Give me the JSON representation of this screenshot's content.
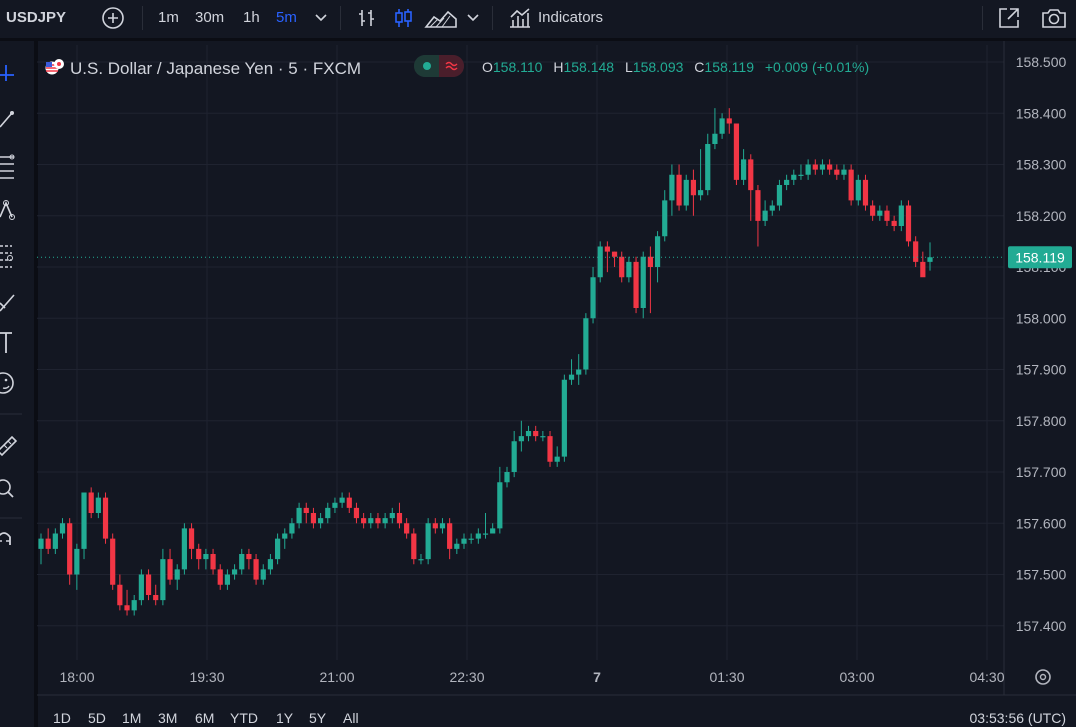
{
  "toolbar": {
    "symbol": "USDJPY",
    "intervals": [
      "1m",
      "30m",
      "1h",
      "5m"
    ],
    "active_interval": "5m",
    "indicators_label": "Indicators"
  },
  "legend": {
    "title": "U.S. Dollar / Japanese Yen · 5 · FXCM",
    "open_key": "O",
    "open": "158.110",
    "high_key": "H",
    "high": "158.148",
    "low_key": "L",
    "low": "158.093",
    "close_key": "C",
    "close": "158.119",
    "change": "+0.009 (+0.01%)"
  },
  "bottom": {
    "ranges": [
      "1D",
      "5D",
      "1M",
      "3M",
      "6M",
      "YTD",
      "1Y",
      "5Y",
      "All"
    ],
    "clock": "03:53:56 (UTC)"
  },
  "colors": {
    "up": "#22ab94",
    "down": "#f23645",
    "background": "#131722",
    "accent": "#2962ff"
  },
  "chart_data": {
    "type": "candlestick",
    "symbol": "USDJPY",
    "interval": "5m",
    "y_ticks": [
      "158.500",
      "158.400",
      "158.300",
      "158.200",
      "158.100",
      "158.000",
      "157.900",
      "157.800",
      "157.700",
      "157.600",
      "157.500",
      "157.400"
    ],
    "x_ticks": [
      "18:00",
      "19:30",
      "21:00",
      "22:30",
      "7",
      "01:30",
      "03:00",
      "04:30"
    ],
    "last_price": "158.119",
    "ylim": [
      157.35,
      158.52
    ],
    "candles": [
      [
        157.55,
        157.57,
        157.52,
        157.58
      ],
      [
        157.57,
        157.55,
        157.54,
        157.59
      ],
      [
        157.55,
        157.58,
        157.54,
        157.59
      ],
      [
        157.58,
        157.6,
        157.57,
        157.61
      ],
      [
        157.6,
        157.5,
        157.48,
        157.61
      ],
      [
        157.5,
        157.55,
        157.47,
        157.56
      ],
      [
        157.55,
        157.66,
        157.53,
        157.66
      ],
      [
        157.66,
        157.62,
        157.61,
        157.67
      ],
      [
        157.62,
        157.65,
        157.61,
        157.66
      ],
      [
        157.65,
        157.57,
        157.56,
        157.66
      ],
      [
        157.57,
        157.48,
        157.47,
        157.58
      ],
      [
        157.48,
        157.44,
        157.43,
        157.5
      ],
      [
        157.44,
        157.43,
        157.42,
        157.47
      ],
      [
        157.43,
        157.45,
        157.42,
        157.46
      ],
      [
        157.45,
        157.5,
        157.44,
        157.51
      ],
      [
        157.5,
        157.46,
        157.45,
        157.51
      ],
      [
        157.46,
        157.45,
        157.44,
        157.48
      ],
      [
        157.45,
        157.53,
        157.44,
        157.55
      ],
      [
        157.53,
        157.49,
        157.48,
        157.55
      ],
      [
        157.49,
        157.51,
        157.47,
        157.52
      ],
      [
        157.51,
        157.59,
        157.5,
        157.6
      ],
      [
        157.59,
        157.55,
        157.53,
        157.6
      ],
      [
        157.55,
        157.53,
        157.51,
        157.56
      ],
      [
        157.53,
        157.54,
        157.51,
        157.55
      ],
      [
        157.54,
        157.51,
        157.5,
        157.55
      ],
      [
        157.51,
        157.48,
        157.47,
        157.52
      ],
      [
        157.48,
        157.5,
        157.47,
        157.51
      ],
      [
        157.5,
        157.51,
        157.49,
        157.52
      ],
      [
        157.51,
        157.54,
        157.5,
        157.55
      ],
      [
        157.54,
        157.53,
        157.51,
        157.55
      ],
      [
        157.53,
        157.49,
        157.48,
        157.54
      ],
      [
        157.49,
        157.51,
        157.48,
        157.52
      ],
      [
        157.51,
        157.53,
        157.5,
        157.54
      ],
      [
        157.53,
        157.57,
        157.52,
        157.58
      ],
      [
        157.57,
        157.58,
        157.55,
        157.59
      ],
      [
        157.58,
        157.6,
        157.57,
        157.61
      ],
      [
        157.6,
        157.63,
        157.59,
        157.64
      ],
      [
        157.63,
        157.62,
        157.6,
        157.64
      ],
      [
        157.62,
        157.6,
        157.59,
        157.63
      ],
      [
        157.6,
        157.61,
        157.59,
        157.62
      ],
      [
        157.61,
        157.63,
        157.6,
        157.64
      ],
      [
        157.63,
        157.64,
        157.62,
        157.65
      ],
      [
        157.64,
        157.65,
        157.63,
        157.66
      ],
      [
        157.65,
        157.63,
        157.62,
        157.66
      ],
      [
        157.63,
        157.61,
        157.6,
        157.64
      ],
      [
        157.61,
        157.6,
        157.59,
        157.62
      ],
      [
        157.6,
        157.61,
        157.59,
        157.62
      ],
      [
        157.61,
        157.6,
        157.59,
        157.62
      ],
      [
        157.6,
        157.61,
        157.59,
        157.62
      ],
      [
        157.61,
        157.62,
        157.6,
        157.63
      ],
      [
        157.62,
        157.6,
        157.59,
        157.64
      ],
      [
        157.6,
        157.58,
        157.57,
        157.61
      ],
      [
        157.58,
        157.53,
        157.52,
        157.59
      ],
      [
        157.53,
        157.53,
        157.52,
        157.54
      ],
      [
        157.53,
        157.6,
        157.52,
        157.61
      ],
      [
        157.6,
        157.59,
        157.58,
        157.61
      ],
      [
        157.59,
        157.6,
        157.58,
        157.61
      ],
      [
        157.6,
        157.55,
        157.53,
        157.61
      ],
      [
        157.55,
        157.56,
        157.54,
        157.57
      ],
      [
        157.56,
        157.57,
        157.55,
        157.58
      ],
      [
        157.57,
        157.57,
        157.56,
        157.58
      ],
      [
        157.57,
        157.58,
        157.56,
        157.59
      ],
      [
        157.58,
        157.58,
        157.57,
        157.62
      ],
      [
        157.58,
        157.59,
        157.58,
        157.6
      ],
      [
        157.59,
        157.68,
        157.58,
        157.71
      ],
      [
        157.68,
        157.7,
        157.67,
        157.71
      ],
      [
        157.7,
        157.76,
        157.69,
        157.78
      ],
      [
        157.76,
        157.77,
        157.74,
        157.8
      ],
      [
        157.77,
        157.78,
        157.76,
        157.79
      ],
      [
        157.78,
        157.77,
        157.76,
        157.79
      ],
      [
        157.77,
        157.77,
        157.76,
        157.78
      ],
      [
        157.77,
        157.72,
        157.71,
        157.78
      ],
      [
        157.72,
        157.73,
        157.71,
        157.75
      ],
      [
        157.73,
        157.88,
        157.72,
        157.89
      ],
      [
        157.88,
        157.89,
        157.87,
        157.92
      ],
      [
        157.89,
        157.9,
        157.87,
        157.93
      ],
      [
        157.9,
        158.0,
        157.89,
        158.01
      ],
      [
        158.0,
        158.08,
        157.99,
        158.1
      ],
      [
        158.08,
        158.14,
        158.07,
        158.15
      ],
      [
        158.14,
        158.13,
        158.09,
        158.15
      ],
      [
        158.13,
        158.12,
        158.1,
        158.13
      ],
      [
        158.12,
        158.08,
        158.07,
        158.13
      ],
      [
        158.08,
        158.11,
        158.07,
        158.12
      ],
      [
        158.11,
        158.02,
        158.01,
        158.12
      ],
      [
        158.02,
        158.12,
        158.0,
        158.13
      ],
      [
        158.12,
        158.1,
        158.01,
        158.14
      ],
      [
        158.1,
        158.16,
        158.07,
        158.17
      ],
      [
        158.16,
        158.23,
        158.15,
        158.25
      ],
      [
        158.23,
        158.28,
        158.2,
        158.3
      ],
      [
        158.28,
        158.22,
        158.21,
        158.3
      ],
      [
        158.22,
        158.27,
        158.21,
        158.28
      ],
      [
        158.27,
        158.24,
        158.2,
        158.29
      ],
      [
        158.24,
        158.25,
        158.23,
        158.33
      ],
      [
        158.25,
        158.34,
        158.24,
        158.36
      ],
      [
        158.34,
        158.36,
        158.33,
        158.41
      ],
      [
        158.36,
        158.39,
        158.35,
        158.4
      ],
      [
        158.39,
        158.38,
        158.36,
        158.41
      ],
      [
        158.38,
        158.27,
        158.26,
        158.38
      ],
      [
        158.27,
        158.31,
        158.26,
        158.33
      ],
      [
        158.31,
        158.25,
        158.19,
        158.32
      ],
      [
        158.25,
        158.19,
        158.14,
        158.26
      ],
      [
        158.19,
        158.21,
        158.18,
        158.23
      ],
      [
        158.21,
        158.22,
        158.2,
        158.23
      ],
      [
        158.22,
        158.26,
        158.21,
        158.27
      ],
      [
        158.26,
        158.27,
        158.25,
        158.28
      ],
      [
        158.27,
        158.28,
        158.26,
        158.29
      ],
      [
        158.28,
        158.28,
        158.27,
        158.3
      ],
      [
        158.28,
        158.3,
        158.27,
        158.31
      ],
      [
        158.3,
        158.29,
        158.28,
        158.31
      ],
      [
        158.29,
        158.3,
        158.28,
        158.31
      ],
      [
        158.3,
        158.29,
        158.28,
        158.31
      ],
      [
        158.29,
        158.28,
        158.27,
        158.3
      ],
      [
        158.28,
        158.29,
        158.27,
        158.3
      ],
      [
        158.29,
        158.23,
        158.22,
        158.3
      ],
      [
        158.23,
        158.27,
        158.22,
        158.28
      ],
      [
        158.27,
        158.22,
        158.21,
        158.28
      ],
      [
        158.22,
        158.2,
        158.19,
        158.23
      ],
      [
        158.2,
        158.21,
        158.19,
        158.22
      ],
      [
        158.21,
        158.19,
        158.18,
        158.22
      ],
      [
        158.19,
        158.18,
        158.17,
        158.2
      ],
      [
        158.18,
        158.22,
        158.17,
        158.23
      ],
      [
        158.22,
        158.15,
        158.14,
        158.23
      ],
      [
        158.15,
        158.11,
        158.1,
        158.16
      ],
      [
        158.11,
        158.08,
        158.09,
        158.13
      ],
      [
        158.11,
        158.119,
        158.093,
        158.148
      ]
    ]
  }
}
